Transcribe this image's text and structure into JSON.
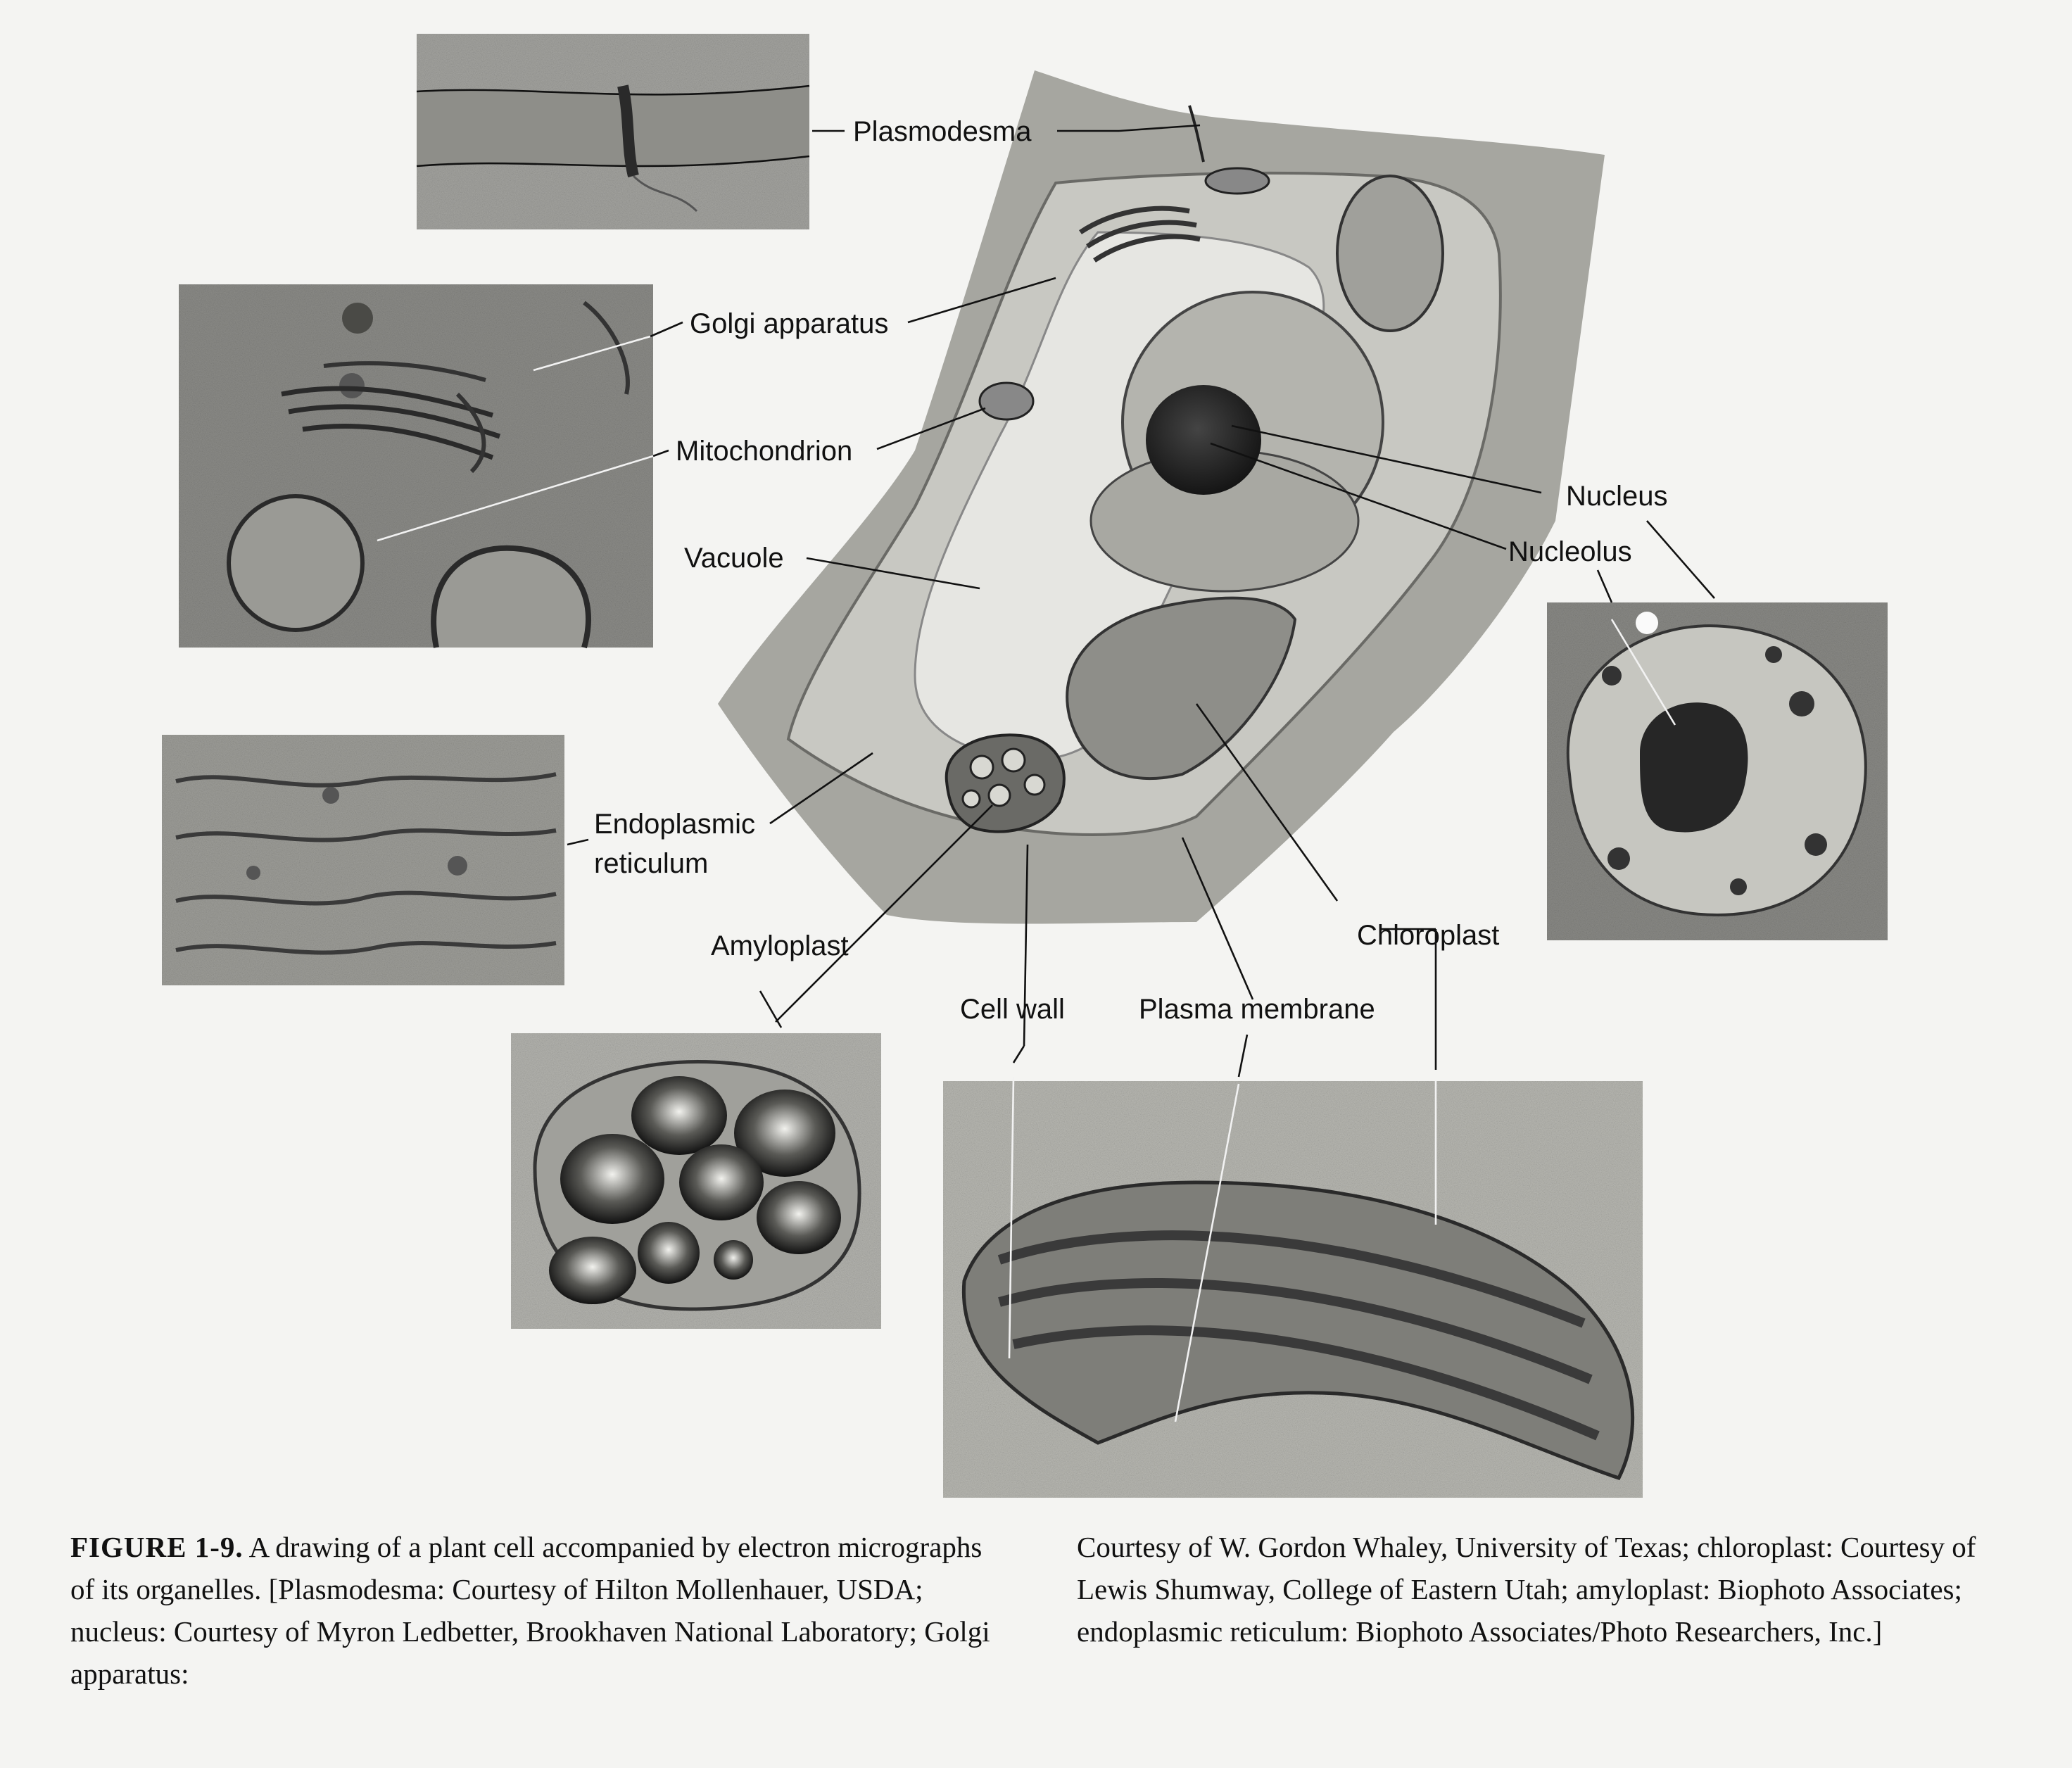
{
  "labels": {
    "plasmodesma": "Plasmodesma",
    "golgi": "Golgi apparatus",
    "mitochondrion": "Mitochondrion",
    "vacuole": "Vacuole",
    "er_line1": "Endoplasmic",
    "er_line2": "reticulum",
    "amyloplast": "Amyloplast",
    "cell_wall": "Cell wall",
    "plasma_membrane": "Plasma membrane",
    "chloroplast": "Chloroplast",
    "nucleus": "Nucleus",
    "nucleolus": "Nucleolus"
  },
  "caption": {
    "figure_label": "FIGURE 1-9.",
    "left_text": "A drawing of a plant cell accompanied by electron micrographs of its organelles. [Plasmodesma: Courtesy of Hilton Mollenhauer, USDA; nucleus: Courtesy of Myron Ledbetter, Brookhaven National Laboratory; Golgi apparatus:",
    "right_text": "Courtesy of W. Gordon Whaley, University of Texas; chloroplast: Courtesy of Lewis Shumway, College of Eastern Utah; amyloplast: Biophoto Associates; endoplasmic reticulum: Biophoto Associates/Photo Researchers, Inc.]"
  },
  "colors": {
    "background": "#f4f4f2",
    "micrograph": "#8a8a86",
    "cell_wall": "#a6a6a0",
    "cytoplasm": "#c8c8c2",
    "vacuole": "#e6e6e2",
    "ink": "#111111"
  }
}
